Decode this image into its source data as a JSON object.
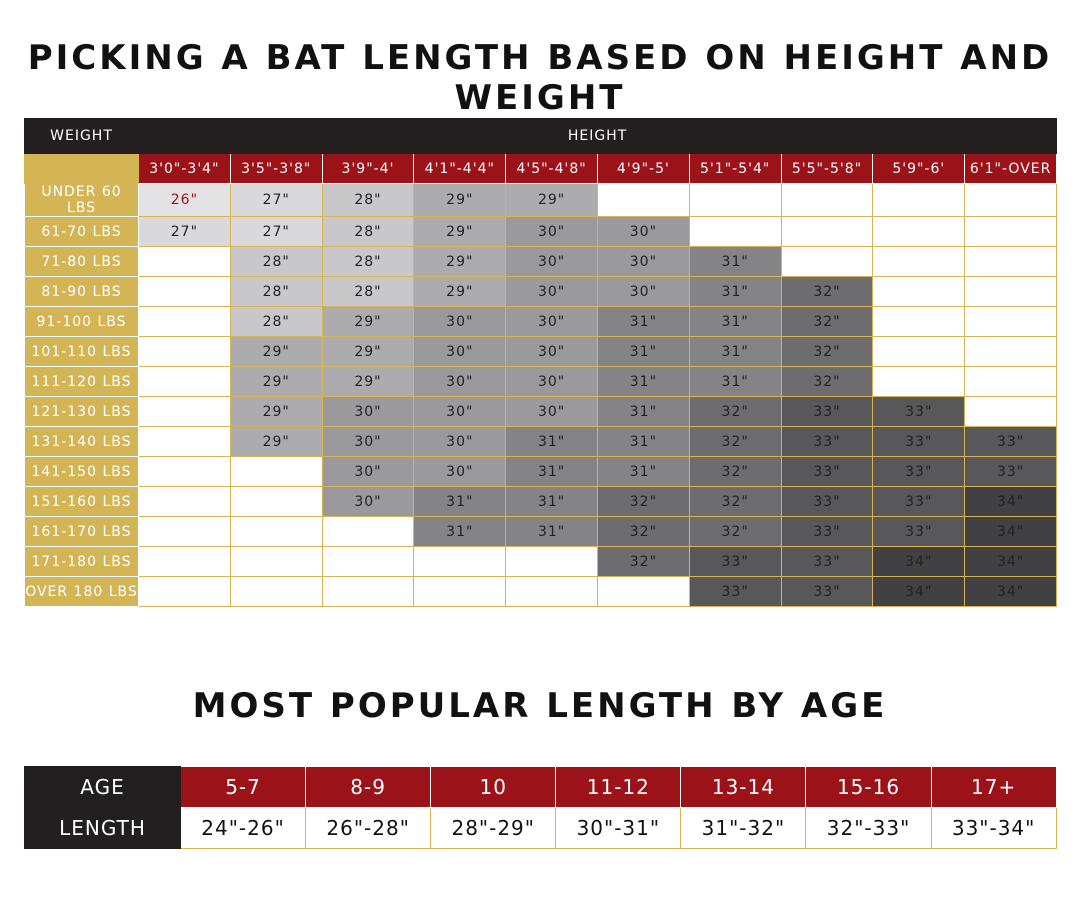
{
  "title1": "PICKING A BAT LENGTH BASED ON  HEIGHT AND WEIGHT",
  "weight_label": "WEIGHT",
  "height_label": "HEIGHT",
  "heights": [
    "3'0\"-3'4\"",
    "3'5\"-3'8\"",
    "3'9\"-4'",
    "4'1\"-4'4\"",
    "4'5\"-4'8\"",
    "4'9\"-5'",
    "5'1\"-5'4\"",
    "5'5\"-5'8\"",
    "5'9\"-6'",
    "6'1\"-OVER"
  ],
  "rows": [
    {
      "weight": "UNDER 60 LBS",
      "cells": [
        "26\"",
        "27\"",
        "28\"",
        "29\"",
        "29\"",
        "",
        "",
        "",
        "",
        ""
      ]
    },
    {
      "weight": "61-70 LBS",
      "cells": [
        "27\"",
        "27\"",
        "28\"",
        "29\"",
        "30\"",
        "30\"",
        "",
        "",
        "",
        ""
      ]
    },
    {
      "weight": "71-80 LBS",
      "cells": [
        "",
        "28\"",
        "28\"",
        "29\"",
        "30\"",
        "30\"",
        "31\"",
        "",
        "",
        ""
      ]
    },
    {
      "weight": "81-90 LBS",
      "cells": [
        "",
        "28\"",
        "28\"",
        "29\"",
        "30\"",
        "30\"",
        "31\"",
        "32\"",
        "",
        ""
      ]
    },
    {
      "weight": "91-100 LBS",
      "cells": [
        "",
        "28\"",
        "29\"",
        "30\"",
        "30\"",
        "31\"",
        "31\"",
        "32\"",
        "",
        ""
      ]
    },
    {
      "weight": "101-110 LBS",
      "cells": [
        "",
        "29\"",
        "29\"",
        "30\"",
        "30\"",
        "31\"",
        "31\"",
        "32\"",
        "",
        ""
      ]
    },
    {
      "weight": "111-120 LBS",
      "cells": [
        "",
        "29\"",
        "29\"",
        "30\"",
        "30\"",
        "31\"",
        "31\"",
        "32\"",
        "",
        ""
      ]
    },
    {
      "weight": "121-130 LBS",
      "cells": [
        "",
        "29\"",
        "30\"",
        "30\"",
        "30\"",
        "31\"",
        "32\"",
        "33\"",
        "33\"",
        ""
      ]
    },
    {
      "weight": "131-140 LBS",
      "cells": [
        "",
        "29\"",
        "30\"",
        "30\"",
        "31\"",
        "31\"",
        "32\"",
        "33\"",
        "33\"",
        "33\""
      ]
    },
    {
      "weight": "141-150 LBS",
      "cells": [
        "",
        "",
        "30\"",
        "30\"",
        "31\"",
        "31\"",
        "32\"",
        "33\"",
        "33\"",
        "33\""
      ]
    },
    {
      "weight": "151-160 LBS",
      "cells": [
        "",
        "",
        "30\"",
        "31\"",
        "31\"",
        "32\"",
        "32\"",
        "33\"",
        "33\"",
        "34\""
      ]
    },
    {
      "weight": "161-170 LBS",
      "cells": [
        "",
        "",
        "",
        "31\"",
        "31\"",
        "32\"",
        "32\"",
        "33\"",
        "33\"",
        "34\""
      ]
    },
    {
      "weight": "171-180 LBS",
      "cells": [
        "",
        "",
        "",
        "",
        "",
        "32\"",
        "33\"",
        "33\"",
        "34\"",
        "34\""
      ]
    },
    {
      "weight": "OVER 180 LBS",
      "cells": [
        "",
        "",
        "",
        "",
        "",
        "",
        "33\"",
        "33\"",
        "34\"",
        "34\""
      ]
    }
  ],
  "title2": "MOST POPULAR LENGTH BY AGE",
  "age_label": "AGE",
  "length_label": "LENGTH",
  "ages": [
    {
      "age": "5-7",
      "length": "24\"-26\""
    },
    {
      "age": "8-9",
      "length": "26\"-28\""
    },
    {
      "age": "10",
      "length": "28\"-29\""
    },
    {
      "age": "11-12",
      "length": "30\"-31\""
    },
    {
      "age": "13-14",
      "length": "31\"-32\""
    },
    {
      "age": "15-16",
      "length": "32\"-33\""
    },
    {
      "age": "17+",
      "length": "33\"-34\""
    }
  ],
  "colors": {
    "gold": "#d4b556",
    "red": "#9b1318",
    "black": "#231f20"
  }
}
